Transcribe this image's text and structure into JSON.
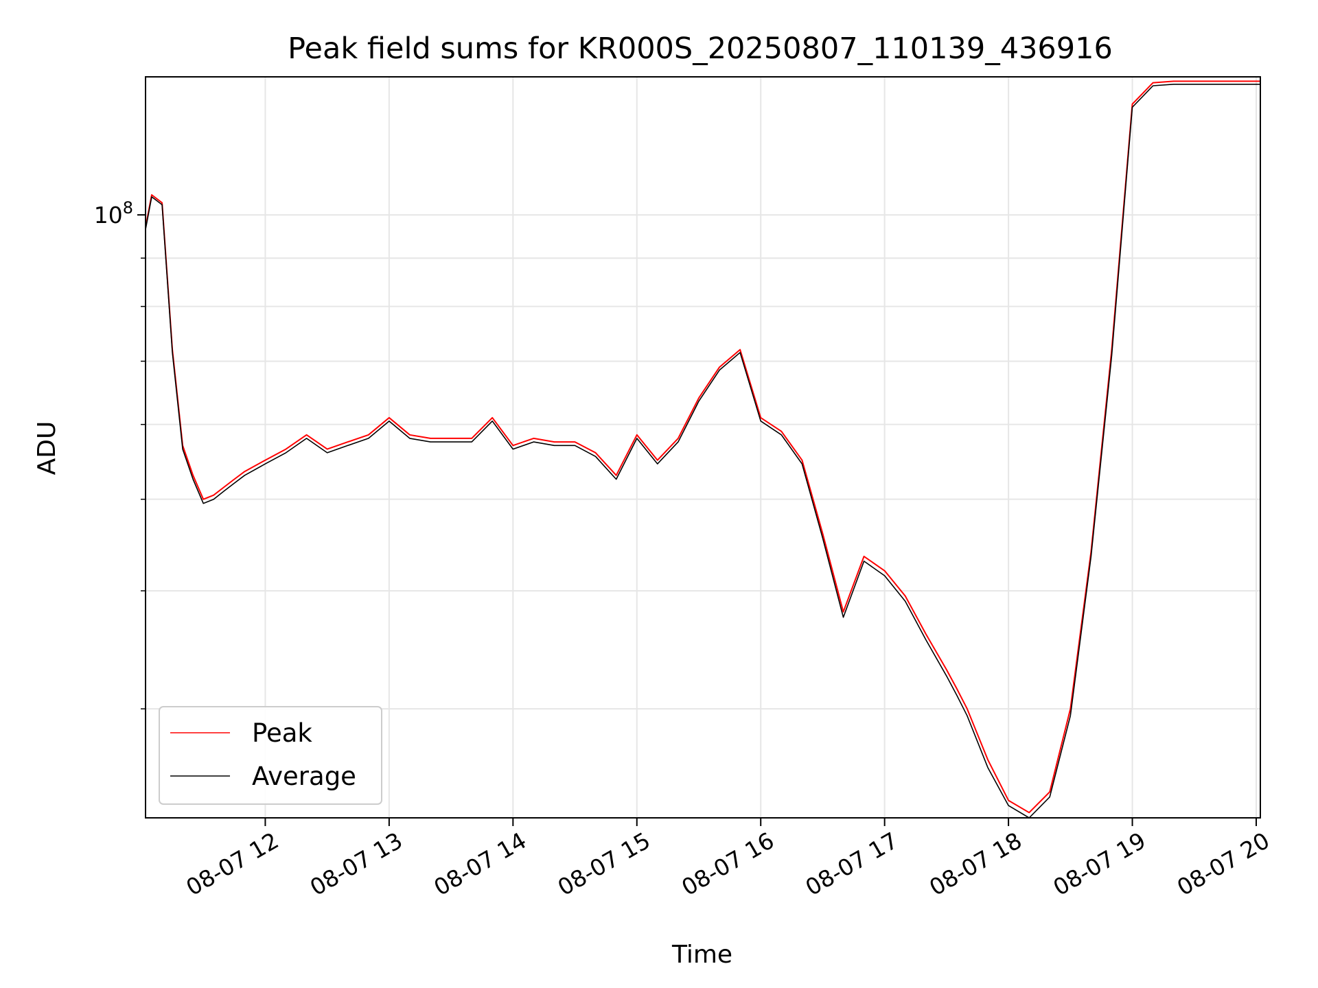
{
  "chart_data": {
    "type": "line",
    "title": "Peak field sums for KR000S_20250807_110139_436916",
    "xlabel": "Time",
    "ylabel": "ADU",
    "yscale": "log",
    "ylim": [
      23000000,
      140000000
    ],
    "xlim": [
      "08-07 11:02",
      "08-07 20:02"
    ],
    "grid": true,
    "legend_position": "lower-left",
    "x_ticks": [
      "08-07 12",
      "08-07 13",
      "08-07 14",
      "08-07 15",
      "08-07 16",
      "08-07 17",
      "08-07 18",
      "08-07 19",
      "08-07 20"
    ],
    "y_ticks": [
      {
        "value": 100000000,
        "label_base": "10",
        "label_exp": "8"
      }
    ],
    "series": [
      {
        "name": "Peak",
        "color": "#ff0000",
        "x": [
          "08-07 11:02",
          "08-07 11:05",
          "08-07 11:10",
          "08-07 11:15",
          "08-07 11:20",
          "08-07 11:25",
          "08-07 11:30",
          "08-07 11:35",
          "08-07 11:40",
          "08-07 11:45",
          "08-07 11:50",
          "08-07 12:00",
          "08-07 12:10",
          "08-07 12:20",
          "08-07 12:30",
          "08-07 12:40",
          "08-07 12:50",
          "08-07 13:00",
          "08-07 13:10",
          "08-07 13:20",
          "08-07 13:30",
          "08-07 13:40",
          "08-07 13:50",
          "08-07 14:00",
          "08-07 14:10",
          "08-07 14:20",
          "08-07 14:30",
          "08-07 14:40",
          "08-07 14:50",
          "08-07 15:00",
          "08-07 15:10",
          "08-07 15:20",
          "08-07 15:30",
          "08-07 15:40",
          "08-07 15:50",
          "08-07 16:00",
          "08-07 16:10",
          "08-07 16:20",
          "08-07 16:30",
          "08-07 16:40",
          "08-07 16:50",
          "08-07 17:00",
          "08-07 17:10",
          "08-07 17:20",
          "08-07 17:30",
          "08-07 17:35",
          "08-07 17:40",
          "08-07 17:50",
          "08-07 18:00",
          "08-07 18:10",
          "08-07 18:20",
          "08-07 18:30",
          "08-07 18:40",
          "08-07 18:50",
          "08-07 19:00",
          "08-07 19:10",
          "08-07 19:20",
          "08-07 19:30",
          "08-07 19:40",
          "08-07 19:50",
          "08-07 20:00",
          "08-07 20:02"
        ],
        "values": [
          97000000,
          105000000,
          103000000,
          72000000,
          57000000,
          53000000,
          50000000,
          50500000,
          51500000,
          52500000,
          53500000,
          55000000,
          56500000,
          58500000,
          56500000,
          57500000,
          58500000,
          61000000,
          58500000,
          58000000,
          58000000,
          58000000,
          61000000,
          57000000,
          58000000,
          57500000,
          57500000,
          56000000,
          53000000,
          58500000,
          55000000,
          58000000,
          64000000,
          69000000,
          72000000,
          61000000,
          59000000,
          55000000,
          46000000,
          38000000,
          43500000,
          42000000,
          39500000,
          36000000,
          33000000,
          31500000,
          30000000,
          26500000,
          24000000,
          23300000,
          24500000,
          30000000,
          44000000,
          72000000,
          131000000,
          138000000,
          138500000,
          138500000,
          138500000,
          138500000,
          138500000,
          138500000
        ]
      },
      {
        "name": "Average",
        "color": "#000000",
        "x": [
          "08-07 11:02",
          "08-07 11:05",
          "08-07 11:10",
          "08-07 11:15",
          "08-07 11:20",
          "08-07 11:25",
          "08-07 11:30",
          "08-07 11:35",
          "08-07 11:40",
          "08-07 11:45",
          "08-07 11:50",
          "08-07 12:00",
          "08-07 12:10",
          "08-07 12:20",
          "08-07 12:30",
          "08-07 12:40",
          "08-07 12:50",
          "08-07 13:00",
          "08-07 13:10",
          "08-07 13:20",
          "08-07 13:30",
          "08-07 13:40",
          "08-07 13:50",
          "08-07 14:00",
          "08-07 14:10",
          "08-07 14:20",
          "08-07 14:30",
          "08-07 14:40",
          "08-07 14:50",
          "08-07 15:00",
          "08-07 15:10",
          "08-07 15:20",
          "08-07 15:30",
          "08-07 15:40",
          "08-07 15:50",
          "08-07 16:00",
          "08-07 16:10",
          "08-07 16:20",
          "08-07 16:30",
          "08-07 16:40",
          "08-07 16:50",
          "08-07 17:00",
          "08-07 17:10",
          "08-07 17:20",
          "08-07 17:30",
          "08-07 17:35",
          "08-07 17:40",
          "08-07 17:50",
          "08-07 18:00",
          "08-07 18:10",
          "08-07 18:20",
          "08-07 18:30",
          "08-07 18:40",
          "08-07 18:50",
          "08-07 19:00",
          "08-07 19:10",
          "08-07 19:20",
          "08-07 19:30",
          "08-07 19:40",
          "08-07 19:50",
          "08-07 20:00",
          "08-07 20:02"
        ],
        "values": [
          96500000,
          104500000,
          102500000,
          71500000,
          56500000,
          52500000,
          49500000,
          50000000,
          51000000,
          52000000,
          53000000,
          54500000,
          56000000,
          58000000,
          56000000,
          57000000,
          58000000,
          60500000,
          58000000,
          57500000,
          57500000,
          57500000,
          60500000,
          56500000,
          57500000,
          57000000,
          57000000,
          55500000,
          52500000,
          58000000,
          54500000,
          57500000,
          63500000,
          68500000,
          71500000,
          60500000,
          58500000,
          54500000,
          45500000,
          37500000,
          43000000,
          41500000,
          39000000,
          35500000,
          32500000,
          31000000,
          29500000,
          26000000,
          23700000,
          23000000,
          24200000,
          29500000,
          43500000,
          71000000,
          130000000,
          137000000,
          137500000,
          137500000,
          137500000,
          137500000,
          137500000,
          137500000
        ]
      }
    ]
  }
}
